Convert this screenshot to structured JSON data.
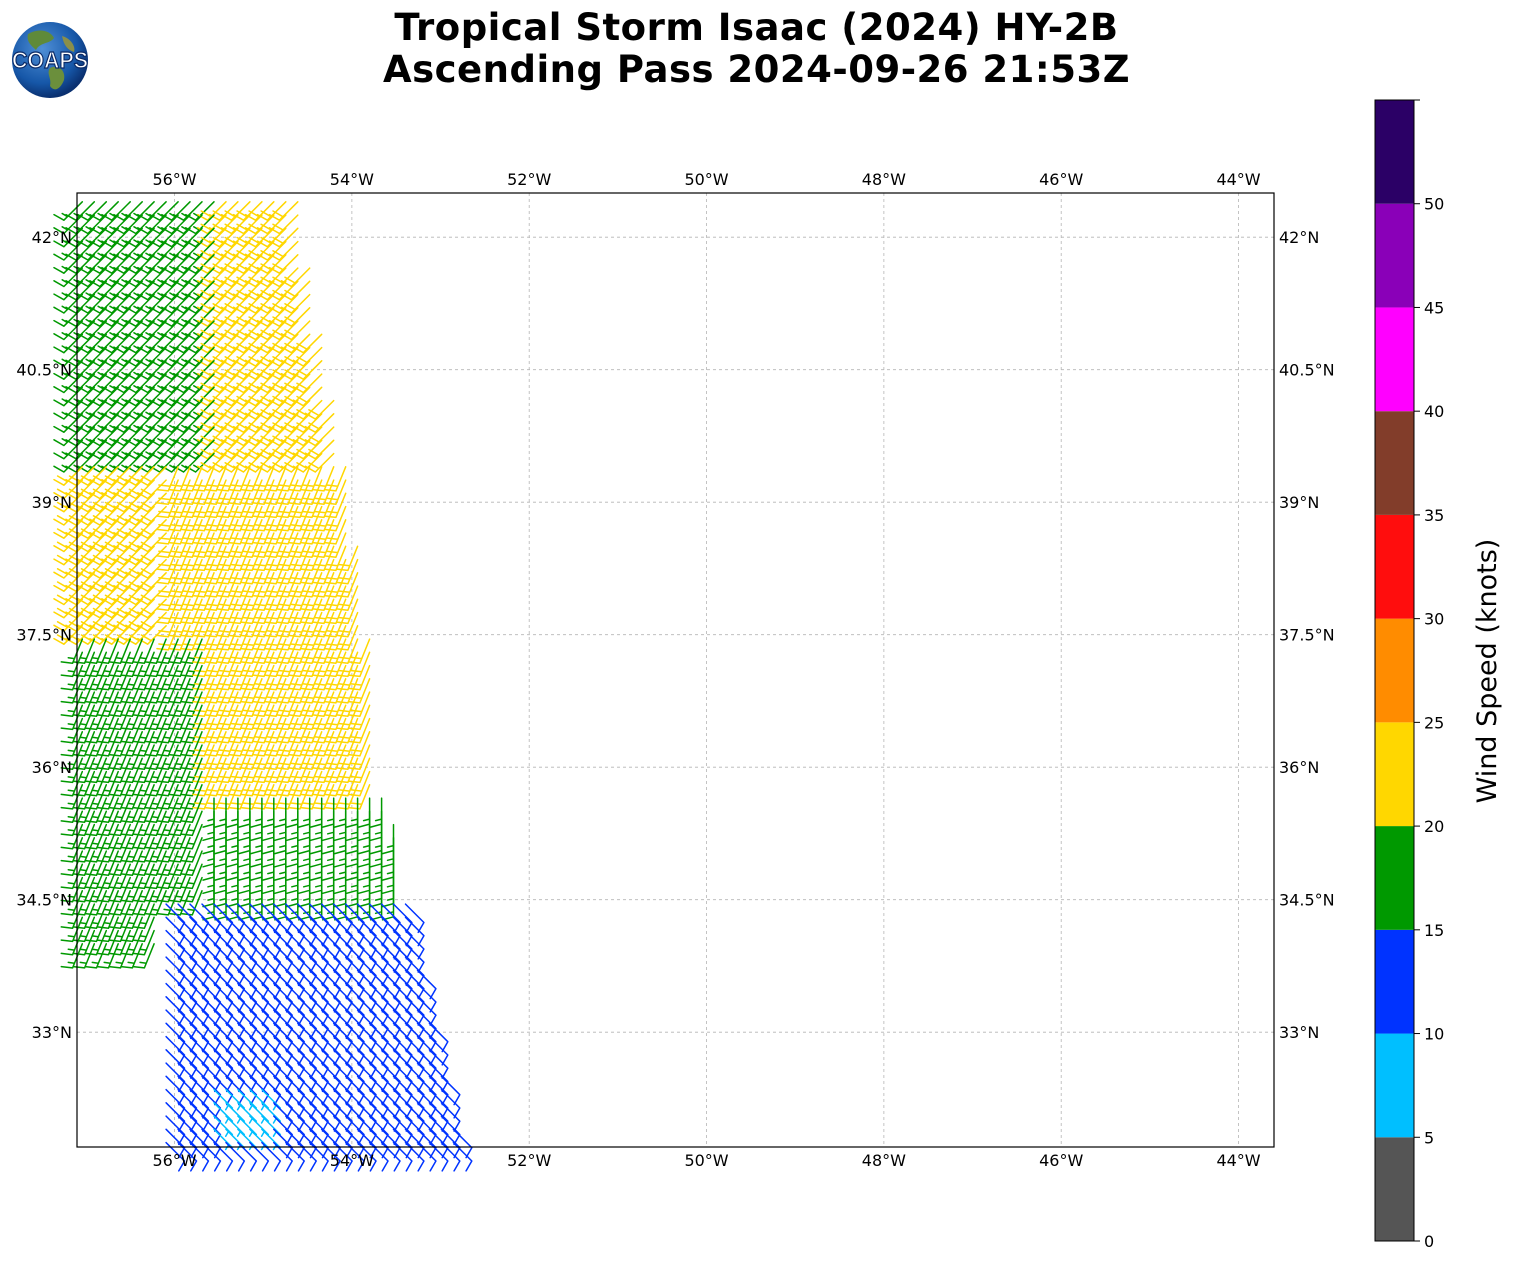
{
  "title": {
    "line1": "Tropical Storm Isaac (2024) HY-2B",
    "line2": "Ascending Pass 2024-09-26 21:53Z"
  },
  "logo": {
    "text": "COAPS",
    "icon": "globe-logo-icon"
  },
  "map": {
    "lon_range": [
      -57.1,
      -43.6
    ],
    "lat_range": [
      31.7,
      42.5
    ],
    "lon_ticks": [
      {
        "value": -56,
        "label": "56°W"
      },
      {
        "value": -54,
        "label": "54°W"
      },
      {
        "value": -52,
        "label": "52°W"
      },
      {
        "value": -50,
        "label": "50°W"
      },
      {
        "value": -48,
        "label": "48°W"
      },
      {
        "value": -46,
        "label": "46°W"
      },
      {
        "value": -44,
        "label": "44°W"
      }
    ],
    "lat_ticks": [
      {
        "value": 42,
        "label": "42°N"
      },
      {
        "value": 40.5,
        "label": "40.5°N"
      },
      {
        "value": 39,
        "label": "39°N"
      },
      {
        "value": 37.5,
        "label": "37.5°N"
      },
      {
        "value": 36,
        "label": "36°N"
      },
      {
        "value": 34.5,
        "label": "34.5°N"
      },
      {
        "value": 33,
        "label": "33°N"
      }
    ],
    "gridlines": true
  },
  "colorbar": {
    "label": "Wind Speed (knots)",
    "bins": [
      {
        "from": 0,
        "to": 5,
        "color": "#555555"
      },
      {
        "from": 5,
        "to": 10,
        "color": "#00bfff"
      },
      {
        "from": 10,
        "to": 15,
        "color": "#0033ff"
      },
      {
        "from": 15,
        "to": 20,
        "color": "#009900"
      },
      {
        "from": 20,
        "to": 25,
        "color": "#ffd700"
      },
      {
        "from": 25,
        "to": 30,
        "color": "#ff8c00"
      },
      {
        "from": 30,
        "to": 35,
        "color": "#ff0d0d"
      },
      {
        "from": 35,
        "to": 40,
        "color": "#823d2a"
      },
      {
        "from": 40,
        "to": 45,
        "color": "#ff00ff"
      },
      {
        "from": 45,
        "to": 50,
        "color": "#8a00b8"
      },
      {
        "from": 50,
        "to": 55,
        "color": "#2b0066"
      }
    ],
    "tick_labels": [
      "0",
      "5",
      "10",
      "15",
      "20",
      "25",
      "30",
      "35",
      "40",
      "45",
      "50"
    ]
  },
  "chart_data": {
    "type": "wind-barbs",
    "variable": "wind speed",
    "units": "knots",
    "swath": {
      "east_edge": [
        {
          "lat": 42.5,
          "lon": -54.6
        },
        {
          "lat": 39.0,
          "lon": -54.0
        },
        {
          "lat": 36.0,
          "lon": -53.6
        },
        {
          "lat": 34.5,
          "lon": -53.4
        },
        {
          "lat": 31.7,
          "lon": -52.8
        }
      ],
      "west_edge_lon": -57.1
    },
    "speed_regions": [
      {
        "lat_range": [
          39.5,
          42.5
        ],
        "lon_range": [
          -57.1,
          -55.5
        ],
        "speed_kt": 18,
        "direction": "from SW"
      },
      {
        "lat_range": [
          39.5,
          42.5
        ],
        "lon_range": [
          -55.5,
          -54.2
        ],
        "speed_kt": 22,
        "direction": "from SW"
      },
      {
        "lat_range": [
          37.5,
          39.5
        ],
        "lon_range": [
          -57.1,
          -55.8
        ],
        "speed_kt": 21,
        "direction": "from SW"
      },
      {
        "lat_range": [
          37.2,
          38.7
        ],
        "lon_range": [
          -54.3,
          -53.9
        ],
        "speed_kt": 26,
        "direction": "from SW"
      },
      {
        "lat_range": [
          35.7,
          39.5
        ],
        "lon_range": [
          -56.0,
          -53.7
        ],
        "speed_kt": 23,
        "direction": "from SSW"
      },
      {
        "lat_range": [
          34.0,
          37.5
        ],
        "lon_range": [
          -57.1,
          -55.6
        ],
        "speed_kt": 17,
        "direction": "from SSW"
      },
      {
        "lat_range": [
          34.0,
          35.8
        ],
        "lon_range": [
          -55.6,
          -53.5
        ],
        "speed_kt": 16,
        "direction": "from S"
      },
      {
        "lat_range": [
          31.7,
          34.5
        ],
        "lon_range": [
          -56.2,
          -52.8
        ],
        "speed_kt": 12,
        "direction": "from SE"
      },
      {
        "lat_range": [
          31.9,
          32.4
        ],
        "lon_range": [
          -55.6,
          -55.0
        ],
        "speed_kt": 8,
        "direction": "from SE"
      }
    ]
  }
}
